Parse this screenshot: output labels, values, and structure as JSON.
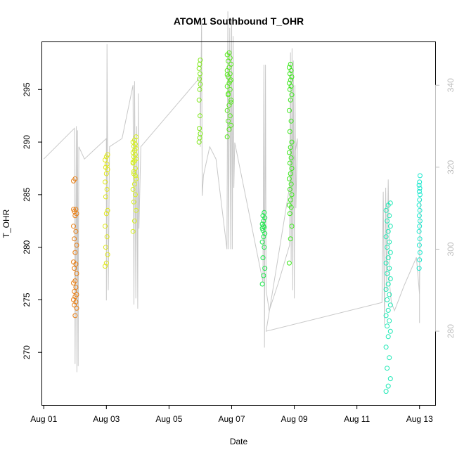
{
  "chart_data": {
    "type": "scatter",
    "title": "ATOM1 Southbound T_OHR",
    "xlabel": "Date",
    "ylabel": "T_OHR",
    "xlim": [
      -0.05,
      12.5
    ],
    "ylim": [
      265,
      299.5
    ],
    "y2lim": [
      262.0,
      350.5
    ],
    "x_ticks": [
      {
        "value": 0,
        "label": "Aug 01"
      },
      {
        "value": 2,
        "label": "Aug 03"
      },
      {
        "value": 4,
        "label": "Aug 05"
      },
      {
        "value": 6,
        "label": "Aug 07"
      },
      {
        "value": 8,
        "label": "Aug 09"
      },
      {
        "value": 10,
        "label": "Aug 11"
      },
      {
        "value": 12,
        "label": "Aug 13"
      }
    ],
    "y_ticks": [
      270,
      275,
      280,
      285,
      290,
      295
    ],
    "y2_ticks": [
      280,
      300,
      320,
      340
    ],
    "colors": {
      "axes": "#000000",
      "secondary_axis": "#bebebe",
      "track_line": "#c8c8c8"
    },
    "series": [
      {
        "color": "#e87e14",
        "x": 1.0,
        "x_spread": 0.1,
        "y_min": 273.5,
        "y_max": 286.5,
        "ys": [
          283.6,
          273.5,
          274.2,
          274.5,
          274.8,
          275.0,
          275.3,
          275.5,
          275.8,
          276.2,
          276.6,
          276.8,
          277.5,
          278.0,
          278.4,
          278.6,
          279.5,
          280.2,
          280.8,
          281.5,
          282.0,
          283.0,
          283.2,
          283.4,
          283.6,
          286.3,
          286.5
        ]
      },
      {
        "color": "#e0e81a",
        "x": 2.0,
        "x_spread": 0.08,
        "y_min": 278.2,
        "y_max": 288.8,
        "ys": [
          278.2,
          278.5,
          279.3,
          280.0,
          281.0,
          282.0,
          283.2,
          283.5,
          284.8,
          285.5,
          286.2,
          287.0,
          287.4,
          287.6,
          287.9,
          288.3,
          288.6,
          288.8
        ]
      },
      {
        "color": "#d6f01e",
        "x": 2.9,
        "x_spread": 0.1,
        "y_min": 281.5,
        "y_max": 290.5,
        "ys": [
          281.5,
          282.5,
          283.5,
          284.3,
          285.0,
          285.5,
          286.0,
          286.5,
          287.0,
          287.5,
          288.0,
          288.2,
          288.4,
          288.6,
          288.8,
          289.0,
          289.2,
          289.4,
          289.6,
          289.8,
          290.0,
          290.2,
          290.5,
          287.2,
          286.8,
          288.1
        ]
      },
      {
        "color": "#7ee81a",
        "x": 4.98,
        "x_spread": 0.04,
        "y_min": 290.0,
        "y_max": 297.8,
        "ys": [
          290.0,
          290.4,
          290.8,
          291.3,
          292.5,
          294.0,
          295.0,
          295.5,
          296.0,
          296.5,
          297.0,
          297.4,
          297.8
        ]
      },
      {
        "color": "#55e81a",
        "x": 5.92,
        "x_spread": 0.12,
        "y_min": 290.5,
        "y_max": 298.5,
        "ys": [
          290.5,
          291.2,
          291.6,
          292.0,
          292.5,
          293.0,
          293.5,
          294.0,
          294.5,
          295.0,
          295.3,
          295.6,
          295.9,
          296.2,
          296.5,
          296.8,
          297.1,
          297.4,
          297.7,
          298.0,
          298.3,
          298.5,
          293.8,
          294.6,
          295.8,
          296.4
        ]
      },
      {
        "color": "#1ae84a",
        "x": 7.02,
        "x_spread": 0.08,
        "y_min": 276.5,
        "y_max": 283.3,
        "ys": [
          276.5,
          277.3,
          278.0,
          279.0,
          280.0,
          280.5,
          281.0,
          281.3,
          281.6,
          281.9,
          282.2,
          282.5,
          282.8,
          283.0,
          283.3,
          281.8,
          282.0
        ]
      },
      {
        "color": "#3ae81a",
        "x": 7.88,
        "x_spread": 0.08,
        "y_min": 278.5,
        "y_max": 297.4,
        "ys": [
          278.5,
          280.8,
          282.0,
          283.2,
          283.8,
          284.0,
          284.5,
          285.0,
          285.5,
          286.0,
          286.5,
          287.0,
          287.5,
          288.0,
          288.5,
          289.0,
          289.5,
          290.0,
          291.0,
          292.0,
          293.0,
          294.0,
          294.5,
          295.0,
          295.3,
          295.6,
          295.9,
          296.2,
          296.5,
          296.8,
          297.1,
          297.4
        ]
      },
      {
        "color": "#1ae8b4",
        "x": 11.0,
        "x_spread": 0.14,
        "y_min": 266.3,
        "y_max": 284.2,
        "ys": [
          266.3,
          266.8,
          267.5,
          268.5,
          269.5,
          270.5,
          271.5,
          272.0,
          272.5,
          273.0,
          273.5,
          274.0,
          274.5,
          275.0,
          275.5,
          276.0,
          276.5,
          277.0,
          277.5,
          278.0,
          278.5,
          279.0,
          279.5,
          280.0,
          280.5,
          281.0,
          281.5,
          282.0,
          282.5,
          283.0,
          283.5,
          284.0,
          284.2
        ]
      },
      {
        "color": "#1ae8ce",
        "x": 12.0,
        "x_spread": 0.03,
        "y_min": 278.0,
        "y_max": 286.8,
        "ys": [
          278.0,
          278.8,
          279.5,
          280.2,
          280.8,
          281.5,
          282.0,
          282.5,
          283.0,
          283.5,
          284.0,
          284.5,
          285.0,
          285.3,
          285.6,
          285.9,
          286.2,
          286.8
        ]
      }
    ],
    "track_line": {
      "axis": "secondary",
      "points": [
        [
          0.0,
          322.0
        ],
        [
          0.98,
          329.5
        ],
        [
          1.0,
          272.0
        ],
        [
          1.04,
          330.0
        ],
        [
          1.06,
          270.0
        ],
        [
          1.08,
          329.0
        ],
        [
          1.1,
          271.5
        ],
        [
          1.12,
          325.0
        ],
        [
          1.3,
          322.0
        ],
        [
          2.0,
          327.0
        ],
        [
          2.0,
          287.5
        ],
        [
          2.02,
          350.0
        ],
        [
          2.06,
          290.0
        ],
        [
          2.1,
          325.0
        ],
        [
          2.5,
          327.0
        ],
        [
          2.85,
          340.0
        ],
        [
          2.88,
          286.5
        ],
        [
          2.9,
          341.0
        ],
        [
          2.94,
          288.0
        ],
        [
          2.97,
          330.0
        ],
        [
          3.0,
          285.5
        ],
        [
          3.02,
          338.0
        ],
        [
          3.04,
          305.0
        ],
        [
          3.1,
          325.0
        ],
        [
          5.0,
          342.0
        ],
        [
          5.0,
          325.0
        ],
        [
          5.04,
          356.0
        ],
        [
          5.06,
          313.0
        ],
        [
          5.1,
          318.0
        ],
        [
          5.3,
          325.0
        ],
        [
          5.5,
          322.0
        ],
        [
          5.85,
          300.0
        ],
        [
          5.88,
          358.0
        ],
        [
          5.9,
          300.0
        ],
        [
          5.94,
          354.0
        ],
        [
          5.97,
          300.0
        ],
        [
          6.0,
          356.0
        ],
        [
          6.02,
          300.0
        ],
        [
          6.05,
          352.0
        ],
        [
          6.07,
          315.0
        ],
        [
          6.1,
          326.0
        ],
        [
          7.0,
          292.0
        ],
        [
          7.03,
          345.0
        ],
        [
          7.05,
          276.0
        ],
        [
          7.08,
          345.0
        ],
        [
          7.1,
          290.0
        ],
        [
          7.2,
          285.0
        ],
        [
          7.5,
          292.0
        ],
        [
          7.85,
          301.0
        ],
        [
          7.88,
          348.0
        ],
        [
          7.9,
          297.0
        ],
        [
          7.93,
          349.0
        ],
        [
          7.95,
          290.0
        ],
        [
          7.97,
          346.0
        ],
        [
          8.0,
          288.0
        ],
        [
          8.02,
          340.0
        ],
        [
          8.05,
          310.0
        ],
        [
          8.1,
          327.0
        ],
        [
          7.1,
          280.0
        ],
        [
          10.8,
          287.0
        ],
        [
          10.84,
          314.0
        ],
        [
          10.88,
          281.5
        ],
        [
          10.92,
          315.0
        ],
        [
          10.95,
          290.0
        ],
        [
          11.0,
          317.0
        ],
        [
          11.05,
          291.0
        ],
        [
          11.1,
          287.0
        ],
        [
          11.2,
          285.0
        ],
        [
          11.5,
          291.0
        ],
        [
          11.9,
          298.0
        ],
        [
          12.0,
          289.0
        ],
        [
          12.02,
          312.0
        ],
        [
          12.0,
          295.0
        ],
        [
          12.0,
          282.0
        ]
      ]
    }
  }
}
